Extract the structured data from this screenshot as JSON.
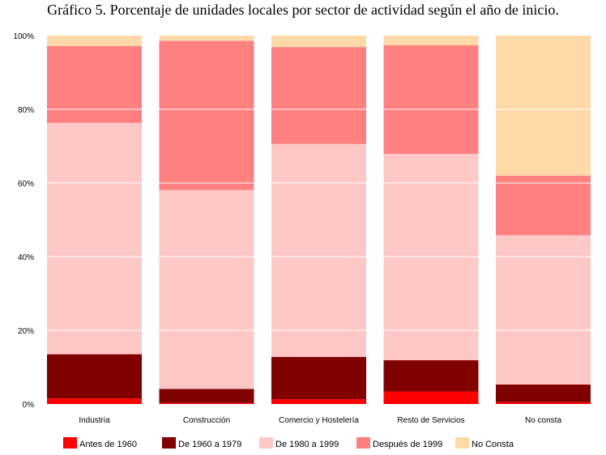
{
  "chart_data": {
    "type": "bar",
    "stacked": true,
    "title": "Gráfico 5. Porcentaje de unidades locales por sector de actividad según el año de inicio.",
    "categories": [
      "Industria",
      "Construcción",
      "Comercio y Hostelería",
      "Resto de Servicios",
      "No consta"
    ],
    "series": [
      {
        "name": "Antes de 1960",
        "color": "#ff0000",
        "values": [
          1.5,
          0.3,
          1.3,
          3.4,
          0.5
        ]
      },
      {
        "name": "De 1960 a 1979",
        "color": "#800000",
        "values": [
          12.0,
          3.8,
          11.5,
          8.5,
          4.8
        ]
      },
      {
        "name": "De 1980 a 1999",
        "color": "#ffc8c8",
        "values": [
          62.8,
          54.0,
          57.8,
          56.0,
          40.5
        ]
      },
      {
        "name": "Después de 1999",
        "color": "#ff8080",
        "values": [
          20.9,
          40.5,
          26.3,
          29.5,
          16.2
        ]
      },
      {
        "name": "No Consta",
        "color": "#ffdaa8",
        "values": [
          2.8,
          1.4,
          3.1,
          2.6,
          38.0
        ]
      }
    ],
    "yticks": [
      "0%",
      "20%",
      "40%",
      "60%",
      "80%",
      "100%"
    ],
    "ylim": [
      0,
      100
    ],
    "grid": true,
    "legend_position": "bottom"
  }
}
